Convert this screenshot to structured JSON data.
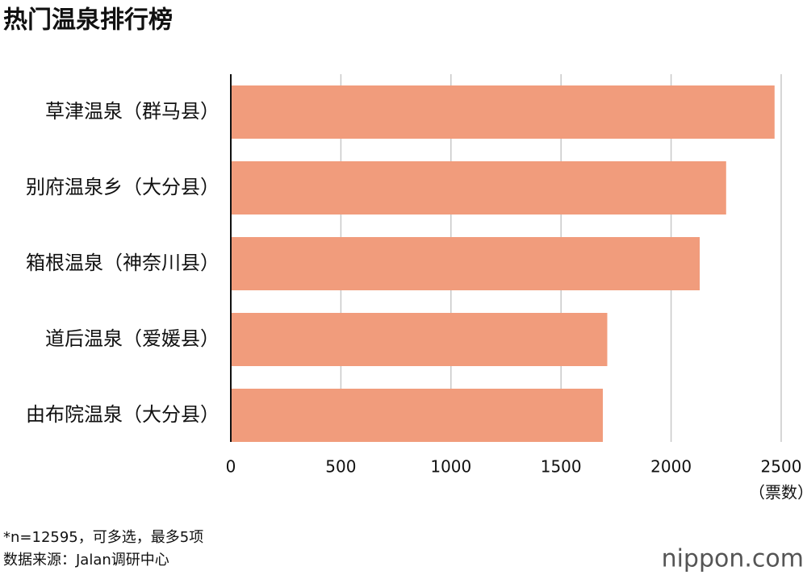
{
  "chart_data": {
    "type": "bar",
    "orientation": "horizontal",
    "title": "热门温泉排行榜",
    "categories": [
      "草津温泉（群马县）",
      "别府温泉乡（大分县）",
      "箱根温泉（神奈川县）",
      "道后温泉（爱媛县）",
      "由布院温泉（大分县）"
    ],
    "values": [
      2470,
      2250,
      2130,
      1710,
      1690
    ],
    "color": "#f19c7c",
    "xlim": [
      0,
      2500
    ],
    "xticks": [
      0,
      500,
      1000,
      1500,
      2000,
      2500
    ],
    "grid": true,
    "x_axis_label": "（票数）",
    "footnote": "*n=12595，可多选，最多5项",
    "source": "数据来源：Jalan调研中心",
    "logo": "nippon.com"
  }
}
